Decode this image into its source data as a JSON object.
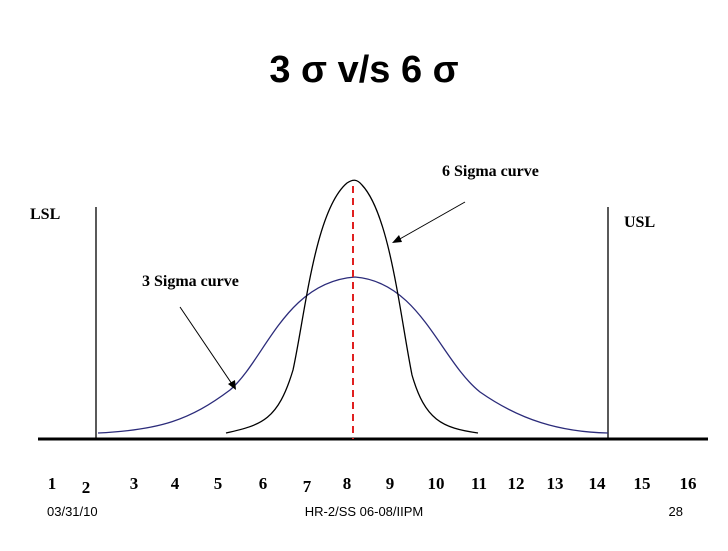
{
  "slide": {
    "title": "3 σ v/s 6 σ",
    "labels": {
      "lsl": "LSL",
      "usl": "USL",
      "six_sigma_curve": "6 Sigma curve",
      "three_sigma_curve": "3 Sigma curve"
    },
    "axis_ticks": [
      "1",
      "2",
      "3",
      "4",
      "5",
      "6",
      "7",
      "8",
      "9",
      "10",
      "11",
      "12",
      "13",
      "14",
      "15",
      "16"
    ],
    "footer": {
      "date": "03/31/10",
      "center": "HR-2/SS 06-08/IIPM",
      "page": "28"
    },
    "colors": {
      "three_sigma_curve": "#2b2b7a",
      "six_sigma_curve": "#000000",
      "mean_line": "#e02020",
      "axis": "#000000"
    }
  }
}
